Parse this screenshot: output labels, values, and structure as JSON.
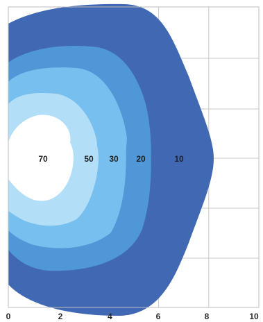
{
  "chart_data": {
    "type": "area",
    "title": "",
    "xlabel": "",
    "ylabel": "",
    "xlim": [
      0,
      10
    ],
    "x_ticks": [
      "0",
      "2",
      "4",
      "6",
      "8",
      "10"
    ],
    "grid": true,
    "contours": [
      {
        "label": "10",
        "color": "#4169b3",
        "x_extent": 8.2
      },
      {
        "label": "20",
        "color": "#4f97d6",
        "x_extent": 5.7
      },
      {
        "label": "30",
        "color": "#76bfee",
        "x_extent": 4.7
      },
      {
        "label": "50",
        "color": "#b3def8",
        "x_extent": 3.6
      },
      {
        "label": "70",
        "color": "#ffffff",
        "x_extent": 2.6
      }
    ]
  }
}
